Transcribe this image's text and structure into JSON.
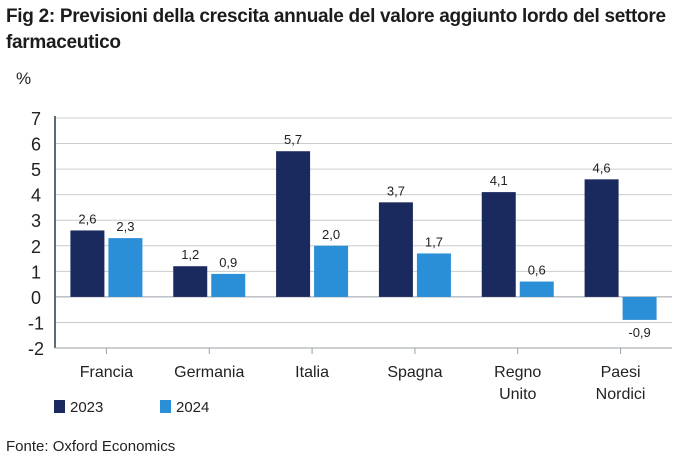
{
  "chart_data": {
    "type": "bar",
    "title": "Fig 2: Previsioni della crescita annuale del valore aggiunto lordo del settore farmaceutico",
    "ylabel": "%",
    "xlabel": "",
    "ylim": [
      -2,
      7
    ],
    "yticks": [
      7,
      6,
      5,
      4,
      3,
      2,
      1,
      0,
      -1,
      -2
    ],
    "ytick_labels": [
      "7",
      "6",
      "5",
      "4",
      "3",
      "2",
      "1",
      "0",
      "-1",
      "-2"
    ],
    "grid": true,
    "legend_position": "bottom-left",
    "categories": [
      [
        "Francia"
      ],
      [
        "Germania"
      ],
      [
        "Italia"
      ],
      [
        "Spagna"
      ],
      [
        "Regno",
        "Unito"
      ],
      [
        "Paesi",
        "Nordici"
      ]
    ],
    "series": [
      {
        "name": "2023",
        "color": "#1b2a5e",
        "values": [
          2.6,
          1.2,
          5.7,
          3.7,
          4.1,
          4.6
        ],
        "labels": [
          "2,6",
          "1,2",
          "5,7",
          "3,7",
          "4,1",
          "4,6"
        ]
      },
      {
        "name": "2024",
        "color": "#2a8fd6",
        "values": [
          2.3,
          0.9,
          2.0,
          1.7,
          0.6,
          -0.9
        ],
        "labels": [
          "2,3",
          "0,9",
          "2,0",
          "1,7",
          "0,6",
          "-0,9"
        ]
      }
    ],
    "source": "Fonte: Oxford Economics"
  }
}
